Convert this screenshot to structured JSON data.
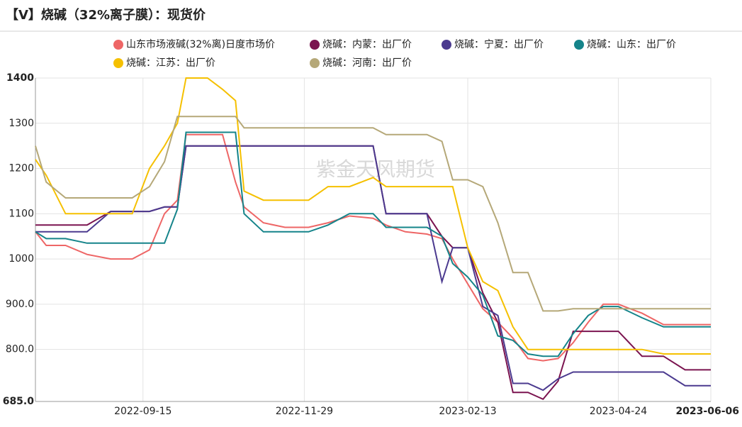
{
  "chart_data": {
    "type": "line",
    "title": "【V】烧碱（32%离子膜）：现货价",
    "watermark": "紫金天风期货",
    "x": [
      "2022-07-27",
      "2022-08-01",
      "2022-08-10",
      "2022-08-20",
      "2022-08-31",
      "2022-09-10",
      "2022-09-18",
      "2022-09-25",
      "2022-10-01",
      "2022-10-05",
      "2022-10-15",
      "2022-10-22",
      "2022-10-28",
      "2022-11-01",
      "2022-11-10",
      "2022-11-20",
      "2022-12-01",
      "2022-12-10",
      "2022-12-20",
      "2022-12-31",
      "2023-01-06",
      "2023-01-15",
      "2023-01-25",
      "2023-02-01",
      "2023-02-06",
      "2023-02-13",
      "2023-02-20",
      "2023-02-27",
      "2023-03-06",
      "2023-03-13",
      "2023-03-20",
      "2023-03-27",
      "2023-04-03",
      "2023-04-10",
      "2023-04-17",
      "2023-04-24",
      "2023-05-05",
      "2023-05-15",
      "2023-05-25",
      "2023-06-06"
    ],
    "xlim": [
      "2022-07-27",
      "2023-06-06"
    ],
    "xticks": [
      "2022-09-15",
      "2022-11-29",
      "2023-02-13",
      "2023-04-24",
      "2023-06-06"
    ],
    "ylim": [
      685,
      1400
    ],
    "yticks": [
      {
        "value": 685,
        "label": "685.0"
      },
      {
        "value": 800,
        "label": "800.0"
      },
      {
        "value": 900,
        "label": "900.0"
      },
      1000,
      1100,
      1200,
      1300,
      1400
    ],
    "grid": true,
    "series": [
      {
        "name": "山东市场液碱(32%离)日度市场价",
        "color": "#ee6666",
        "values": [
          1060,
          1030,
          1030,
          1010,
          1000,
          1000,
          1020,
          1100,
          1130,
          1275,
          1275,
          1275,
          1170,
          1115,
          1080,
          1070,
          1070,
          1080,
          1095,
          1090,
          1075,
          1060,
          1055,
          1045,
          1000,
          945,
          890,
          860,
          825,
          780,
          775,
          780,
          815,
          860,
          900,
          900,
          880,
          855,
          855,
          855
        ]
      },
      {
        "name": "烧碱：内蒙：出厂价",
        "color": "#7b1450",
        "values": [
          1075,
          1075,
          1075,
          1075,
          1105,
          1105,
          1105,
          1115,
          1115,
          1250,
          1250,
          1250,
          1250,
          1250,
          1250,
          1250,
          1250,
          1250,
          1250,
          1250,
          1100,
          1100,
          1100,
          1050,
          1025,
          1025,
          925,
          860,
          705,
          705,
          690,
          730,
          840,
          840,
          840,
          840,
          785,
          785,
          755,
          755
        ]
      },
      {
        "name": "烧碱：宁夏：出厂价",
        "color": "#4b3a8f",
        "values": [
          1060,
          1060,
          1060,
          1060,
          1105,
          1105,
          1105,
          1115,
          1115,
          1250,
          1250,
          1250,
          1250,
          1250,
          1250,
          1250,
          1250,
          1250,
          1250,
          1250,
          1100,
          1100,
          1100,
          950,
          1025,
          1025,
          895,
          875,
          725,
          725,
          710,
          735,
          750,
          750,
          750,
          750,
          750,
          750,
          720,
          720
        ]
      },
      {
        "name": "烧碱：山东：出厂价",
        "color": "#15848a",
        "values": [
          1060,
          1045,
          1045,
          1035,
          1035,
          1035,
          1035,
          1035,
          1110,
          1280,
          1280,
          1280,
          1280,
          1100,
          1060,
          1060,
          1060,
          1075,
          1100,
          1100,
          1070,
          1070,
          1070,
          1050,
          990,
          960,
          920,
          830,
          820,
          790,
          785,
          785,
          835,
          875,
          895,
          895,
          870,
          850,
          850,
          850
        ]
      },
      {
        "name": "烧碱：江苏：出厂价",
        "color": "#f5c000",
        "values": [
          1220,
          1185,
          1100,
          1100,
          1100,
          1100,
          1200,
          1250,
          1300,
          1400,
          1400,
          1375,
          1350,
          1150,
          1130,
          1130,
          1130,
          1160,
          1160,
          1180,
          1160,
          1160,
          1160,
          1160,
          1160,
          1025,
          950,
          930,
          850,
          800,
          800,
          800,
          800,
          800,
          800,
          800,
          800,
          790,
          790,
          790
        ]
      },
      {
        "name": "烧碱：河南：出厂价",
        "color": "#b5a878",
        "values": [
          1250,
          1170,
          1135,
          1135,
          1135,
          1135,
          1160,
          1215,
          1315,
          1315,
          1315,
          1315,
          1315,
          1290,
          1290,
          1290,
          1290,
          1290,
          1290,
          1290,
          1275,
          1275,
          1275,
          1260,
          1175,
          1175,
          1160,
          1080,
          970,
          970,
          885,
          885,
          890,
          890,
          890,
          890,
          890,
          890,
          890,
          890
        ]
      }
    ]
  }
}
